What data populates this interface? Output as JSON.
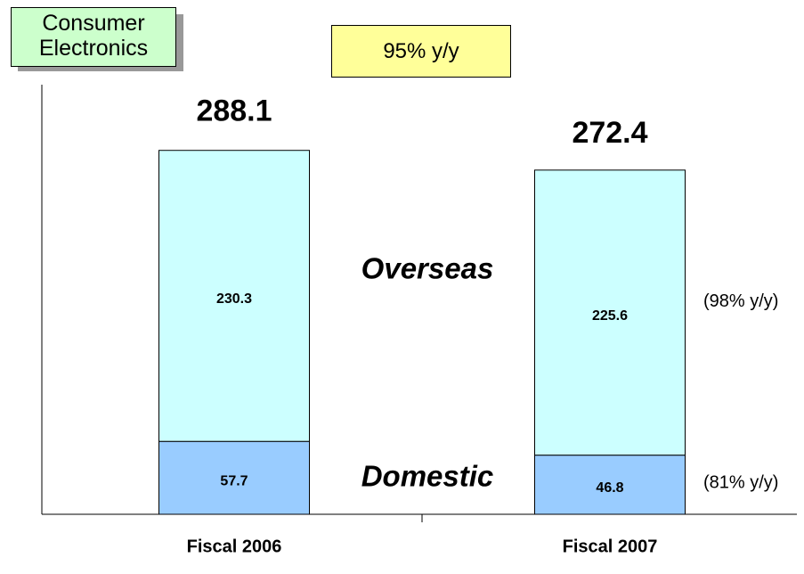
{
  "chart_data": {
    "type": "stacked_bar",
    "title": "Consumer Electronics",
    "annotation": "95% y/y",
    "categories": [
      "Fiscal 2006",
      "Fiscal 2007"
    ],
    "totals": [
      288.1,
      272.4
    ],
    "series": [
      {
        "name": "Domestic",
        "color": "#99ccff",
        "values": [
          57.7,
          46.8
        ],
        "growth": "(81% y/y)"
      },
      {
        "name": "Overseas",
        "color": "#ccffff",
        "values": [
          230.3,
          225.6
        ],
        "growth": "(98% y/y)"
      }
    ],
    "ylim": [
      0,
      340
    ]
  }
}
